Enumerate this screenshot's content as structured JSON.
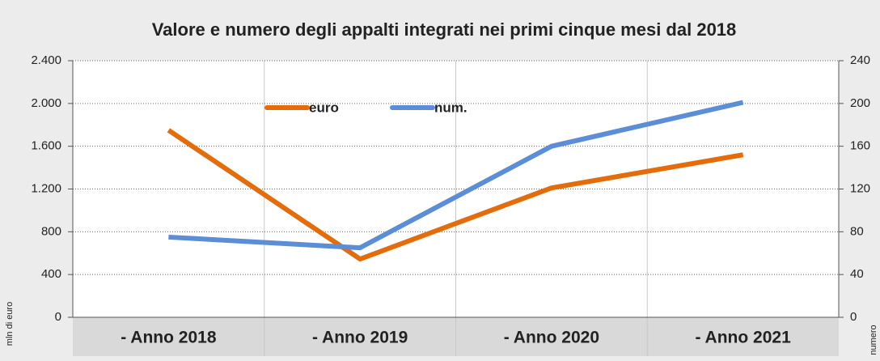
{
  "chart_data": {
    "type": "line",
    "title": "Valore e numero degli appalti integrati nei primi cinque mesi dal 2018",
    "y_label": "mln di euro",
    "y2_label": "numero",
    "categories": [
      "- Anno 2018",
      "- Anno 2019",
      "- Anno 2020",
      "- Anno 2021"
    ],
    "series": [
      {
        "name": "euro",
        "color": "#e46c0a",
        "values": [
          1750,
          545,
          1210,
          1520
        ]
      },
      {
        "name": "num.",
        "color": "#5b8ed6",
        "axis": "y2",
        "values": [
          75,
          65,
          160,
          201
        ]
      }
    ],
    "ylim": [
      0,
      2400
    ],
    "yticks": [
      0,
      400,
      800,
      {
        "value": 1200,
        "label": "1.200"
      },
      {
        "value": 1600,
        "label": "1.600"
      },
      {
        "value": 2000,
        "label": "2.000"
      },
      {
        "value": 2400,
        "label": "2.400"
      }
    ],
    "y2lim": [
      0,
      240
    ],
    "y2ticks": [
      0,
      40,
      80,
      120,
      160,
      200,
      240
    ],
    "grid": true,
    "legend": "top"
  }
}
